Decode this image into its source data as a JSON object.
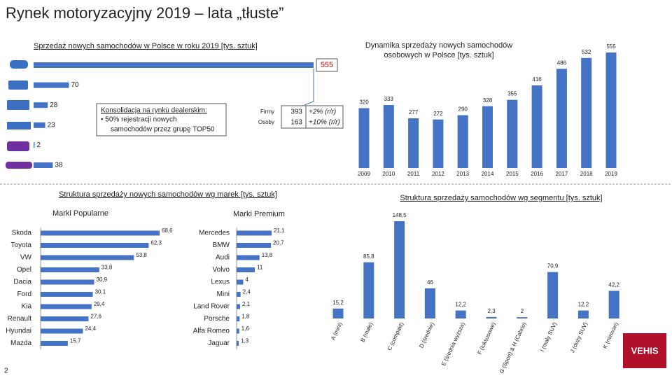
{
  "title": "Rynek motoryzacyjny 2019 – lata „tłuste”",
  "brand_section_title": "Struktura sprzedaży nowych samochodów wg marek [tys. sztuk]",
  "consolidation": {
    "heading": "Konsolidacja na rynku dealerskim:",
    "bullet_1": "• 50% rejestracji nowych",
    "bullet_2": "samochodów przez grupę TOP50"
  },
  "buyers": {
    "rows": [
      [
        "Firmy",
        "393",
        "+2% (r/r)"
      ],
      [
        "Osoby",
        "163",
        "+10% (r/r)"
      ]
    ]
  },
  "page_number": "2",
  "logo": "VEHIS",
  "chart_data": [
    {
      "type": "hbar",
      "title": "Sprzedaż nowych samochodów w Polsce w roku 2019  [tys. sztuk]",
      "categories": [
        null,
        null,
        null,
        null,
        null,
        null
      ],
      "values": [
        555,
        70,
        28,
        23,
        2,
        38
      ],
      "color": "#4472c4",
      "xlim": [
        0,
        555
      ]
    },
    {
      "type": "bar",
      "title": "Dynamika sprzedaży nowych samochodów osobowych w Polsce [tys. sztuk]",
      "categories": [
        "2009",
        "2010",
        "2011",
        "2012",
        "2013",
        "2014",
        "2015",
        "2016",
        "2017",
        "2018",
        "2019"
      ],
      "values": [
        320,
        333,
        277,
        272,
        290,
        328,
        355,
        416,
        486,
        532,
        555
      ],
      "color": "#4472c4",
      "ylim": [
        67,
        555
      ]
    },
    {
      "type": "hbar",
      "title": "Marki Popularne",
      "categories": [
        "Skoda",
        "Toyota",
        "VW",
        "Opel",
        "Dacia",
        "Ford",
        "Kia",
        "Renault",
        "Hyundai",
        "Mazda"
      ],
      "values": [
        68.6,
        62.3,
        53.8,
        33.8,
        30.9,
        30.1,
        29.4,
        27.6,
        24.4,
        15.7
      ],
      "value_labels": [
        "68,6",
        "62,3",
        "53,8",
        "33,8",
        "30,9",
        "30,1",
        "29,4",
        "27,6",
        "24,4",
        "15,7"
      ],
      "color": "#4472c4",
      "xlim": [
        0,
        68.6
      ]
    },
    {
      "type": "hbar",
      "title": "Marki Premium",
      "categories": [
        "Mercedes",
        "BMW",
        "Audi",
        "Volvo",
        "Lexus",
        "Mini",
        "Land Rover",
        "Porsche",
        "Alfa Romeo",
        "Jaguar"
      ],
      "values": [
        21.1,
        20.7,
        13.8,
        11,
        4,
        2.4,
        2.1,
        1.8,
        1.6,
        1.3
      ],
      "value_labels": [
        "21,1",
        "20,7",
        "13,8",
        "11",
        "4",
        "2,4",
        "2,1",
        "1,8",
        "1,6",
        "1,3"
      ],
      "color": "#4472c4",
      "xlim": [
        0,
        21.1
      ]
    },
    {
      "type": "bar",
      "title": "Struktura sprzedaży samochodów wg segmentu [tys. sztuk]",
      "categories": [
        "A (mini)",
        "B (małe)",
        "C (compakt)",
        "D (średnie)",
        "E (średnia wyższa)",
        "F (luksusowe)",
        "G (Sport) & H (Cabrio)",
        "I (mały SUV)",
        "J (duży SUV)",
        "K (minivan)"
      ],
      "values": [
        15.2,
        85.8,
        148.5,
        46,
        12.2,
        2.3,
        2,
        70.9,
        12.2,
        42.2
      ],
      "value_labels": [
        "15,2",
        "85,8",
        "148,5",
        "46",
        "12,2",
        "2,3",
        "2",
        "70,9",
        "12,2",
        "42,2"
      ],
      "color": "#4472c4",
      "ylim": [
        0,
        148.5
      ]
    }
  ]
}
